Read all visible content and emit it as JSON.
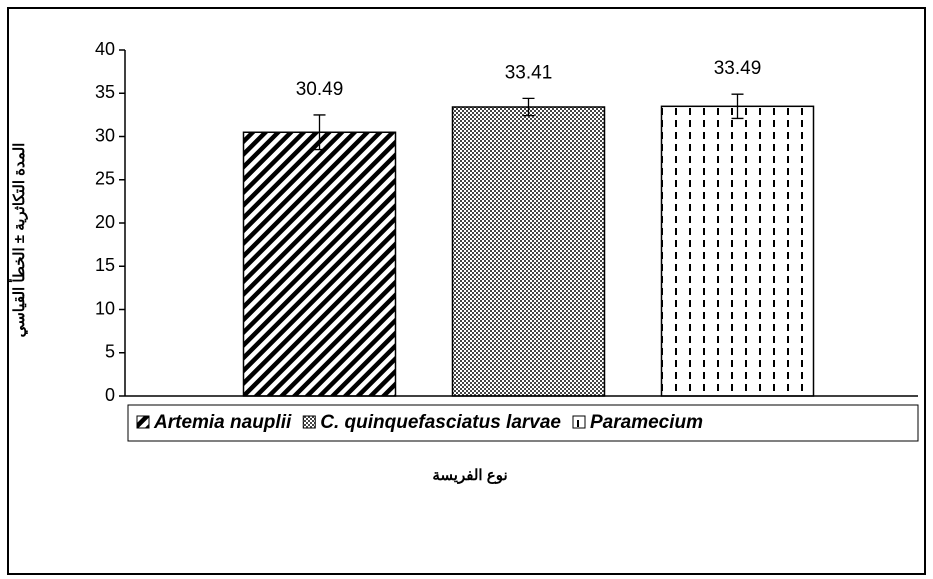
{
  "chart_data": {
    "type": "bar",
    "y_label": "المدة التكاثرية ± الخطأ القياسي",
    "x_label": "نوع الفريسة",
    "categories": [
      "Artemia nauplii",
      "C. quinquefasciatus larvae",
      "Paramecium"
    ],
    "values": [
      30.49,
      33.41,
      33.49
    ],
    "errors": [
      2,
      1,
      1.4
    ],
    "ylim": [
      0,
      40
    ],
    "yticks": [
      0,
      5,
      10,
      15,
      20,
      25,
      30,
      35,
      40
    ]
  }
}
